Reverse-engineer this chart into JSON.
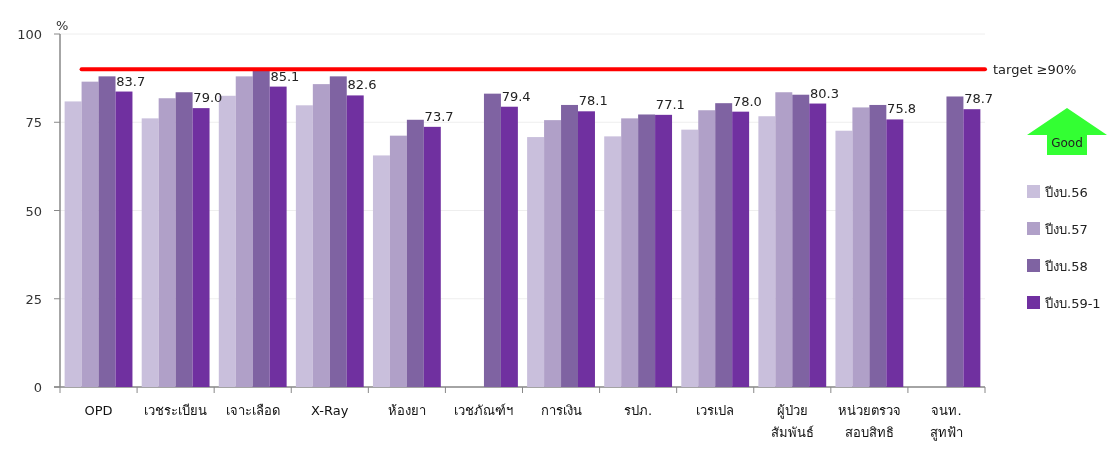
{
  "chart_data": {
    "type": "bar",
    "ylabel": "%",
    "categories": [
      "OPD",
      "เวชระเบียน",
      "เจาะเลือด",
      "X-Ray",
      "ห้องยา",
      "เวชภัณฑ์ฯ",
      "การเงิน",
      "รปภ.",
      "เวรเปล",
      "ผู้ป่วย\nสัมพันธ์",
      "หน่วยตรวจ\nสอบสิทธิ",
      "จนท.\nสูทฟ้า"
    ],
    "series": [
      {
        "name": "ปีงบ.56",
        "color": "#c9bfdc",
        "values": [
          80.9,
          76.1,
          82.5,
          79.8,
          65.6,
          null,
          70.8,
          71.0,
          72.9,
          76.7,
          72.6,
          null
        ]
      },
      {
        "name": "ปีงบ.57",
        "color": "#b0a0c8",
        "values": [
          86.5,
          81.8,
          88.0,
          85.8,
          71.2,
          null,
          75.6,
          76.1,
          78.4,
          83.5,
          79.2,
          null
        ]
      },
      {
        "name": "ปีงบ.58",
        "color": "#7f63a2",
        "values": [
          88.0,
          83.5,
          90.1,
          88.0,
          75.7,
          83.1,
          79.9,
          77.2,
          80.4,
          82.8,
          79.9,
          82.3
        ]
      },
      {
        "name": "ปีงบ.59-1",
        "color": "#7030a0",
        "values": [
          83.7,
          79.0,
          85.1,
          82.6,
          73.7,
          79.4,
          78.1,
          77.1,
          78.0,
          80.3,
          75.8,
          78.7
        ],
        "value_labels": [
          "83.7",
          "79.0",
          "85.1",
          "82.6",
          "73.7",
          "79.4",
          "78.1",
          "77.1",
          "78.0",
          "80.3",
          "75.8",
          "78.7"
        ]
      }
    ],
    "ylim": [
      0,
      100
    ],
    "yticks": [
      0,
      25,
      50,
      75,
      100
    ],
    "grid": "y",
    "legend": "right",
    "ref_lines": [
      {
        "axis": "y",
        "value": 90,
        "label": "target ≥90%",
        "color": "#ff0000"
      }
    ],
    "annotations": [
      "Good"
    ]
  }
}
